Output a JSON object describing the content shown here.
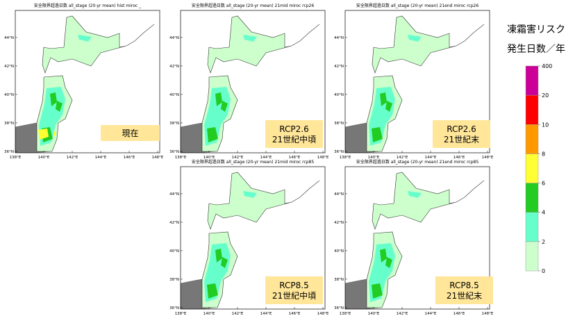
{
  "panels": [
    {
      "title": "安全限界超過日数 all_stage (20-yr mean)  hist  miroc  _",
      "label_lines": [
        "現在"
      ]
    },
    {
      "title": "安全限界超過日数 all_stage (20-yr mean)  21mid  miroc  rcp26",
      "label_lines": [
        "RCP2.6",
        "21世紀中頃"
      ]
    },
    {
      "title": "安全限界超過日数 all_stage (20-yr mean)  21end  miroc  rcp26",
      "label_lines": [
        "RCP2.6",
        "21世紀末"
      ]
    },
    {
      "title": "安全限界超過日数 all_stage (20-yr mean)  21mid  miroc  rcp85",
      "label_lines": [
        "RCP8.5",
        "21世紀中頃"
      ]
    },
    {
      "title": "安全限界超過日数 all_stage (20-yr mean)  21end  miroc  rcp85",
      "label_lines": [
        "RCP8.5",
        "21世紀末"
      ]
    }
  ],
  "axes": {
    "lon_ticks": [
      {
        "value": 138,
        "label": "138°E"
      },
      {
        "value": 140,
        "label": "140°E"
      },
      {
        "value": 142,
        "label": "142°E"
      },
      {
        "value": 144,
        "label": "144°E"
      },
      {
        "value": 146,
        "label": "146°E"
      },
      {
        "value": 148,
        "label": "148°E"
      }
    ],
    "lat_ticks": [
      {
        "value": 44,
        "label": "44°N"
      },
      {
        "value": 42,
        "label": "42°N"
      },
      {
        "value": 40,
        "label": "40°N"
      },
      {
        "value": 38,
        "label": "38°N"
      },
      {
        "value": 36,
        "label": "36°N"
      }
    ]
  },
  "legend": {
    "title_lines": [
      "凍霜害リスク",
      "発生日数／年"
    ],
    "bins": [
      0,
      2,
      4,
      6,
      8,
      10,
      20,
      400
    ],
    "colors": [
      "#ccffcc",
      "#66ffcc",
      "#22cc22",
      "#ffff33",
      "#ff9900",
      "#ff0000",
      "#cc0099"
    ]
  }
}
